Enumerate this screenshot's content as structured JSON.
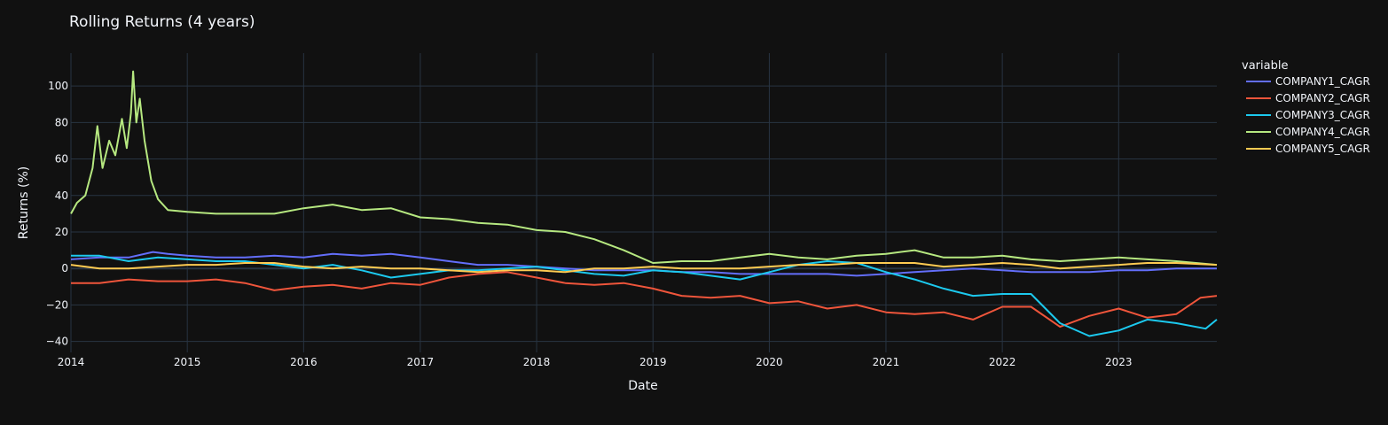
{
  "chart_data": {
    "type": "line",
    "title": "Rolling Returns (4 years)",
    "xlabel": "Date",
    "ylabel": "Returns (%)",
    "legend_title": "variable",
    "legend_position": "top-right, outside plot",
    "grid": true,
    "background": "#111111",
    "x_ticks": [
      "2014",
      "2015",
      "2016",
      "2017",
      "2018",
      "2019",
      "2020",
      "2021",
      "2022",
      "2023"
    ],
    "y_ticks": [
      -40,
      -20,
      0,
      20,
      40,
      60,
      80,
      100
    ],
    "xlim": [
      "2014-01-01",
      "2023-11-05"
    ],
    "ylim": [
      -46,
      118
    ],
    "series": [
      {
        "name": "COMPANY1_CAGR",
        "color": "#636efa",
        "points": [
          [
            "2014-01-01",
            5
          ],
          [
            "2014-04-01",
            6
          ],
          [
            "2014-07-01",
            6
          ],
          [
            "2014-09-15",
            9
          ],
          [
            "2014-11-01",
            8
          ],
          [
            "2015-01-01",
            7
          ],
          [
            "2015-04-01",
            6
          ],
          [
            "2015-07-01",
            6
          ],
          [
            "2015-10-01",
            7
          ],
          [
            "2016-01-01",
            6
          ],
          [
            "2016-04-01",
            8
          ],
          [
            "2016-07-01",
            7
          ],
          [
            "2016-10-01",
            8
          ],
          [
            "2017-01-01",
            6
          ],
          [
            "2017-04-01",
            4
          ],
          [
            "2017-07-01",
            2
          ],
          [
            "2017-10-01",
            2
          ],
          [
            "2018-01-01",
            1
          ],
          [
            "2018-04-01",
            0
          ],
          [
            "2018-07-01",
            -1
          ],
          [
            "2018-10-01",
            -1
          ],
          [
            "2019-01-01",
            -1
          ],
          [
            "2019-04-01",
            -2
          ],
          [
            "2019-07-01",
            -2
          ],
          [
            "2019-10-01",
            -3
          ],
          [
            "2020-01-01",
            -3
          ],
          [
            "2020-04-01",
            -3
          ],
          [
            "2020-07-01",
            -3
          ],
          [
            "2020-10-01",
            -4
          ],
          [
            "2021-01-01",
            -3
          ],
          [
            "2021-04-01",
            -2
          ],
          [
            "2021-07-01",
            -1
          ],
          [
            "2021-10-01",
            0
          ],
          [
            "2022-01-01",
            -1
          ],
          [
            "2022-04-01",
            -2
          ],
          [
            "2022-07-01",
            -2
          ],
          [
            "2022-10-01",
            -2
          ],
          [
            "2023-01-01",
            -1
          ],
          [
            "2023-04-01",
            -1
          ],
          [
            "2023-07-01",
            0
          ],
          [
            "2023-11-05",
            0
          ]
        ]
      },
      {
        "name": "COMPANY2_CAGR",
        "color": "#ef553b",
        "points": [
          [
            "2014-01-01",
            -8
          ],
          [
            "2014-04-01",
            -8
          ],
          [
            "2014-07-01",
            -6
          ],
          [
            "2014-10-01",
            -7
          ],
          [
            "2015-01-01",
            -7
          ],
          [
            "2015-04-01",
            -6
          ],
          [
            "2015-07-01",
            -8
          ],
          [
            "2015-10-01",
            -12
          ],
          [
            "2016-01-01",
            -10
          ],
          [
            "2016-04-01",
            -9
          ],
          [
            "2016-07-01",
            -11
          ],
          [
            "2016-10-01",
            -8
          ],
          [
            "2017-01-01",
            -9
          ],
          [
            "2017-04-01",
            -5
          ],
          [
            "2017-07-01",
            -3
          ],
          [
            "2017-10-01",
            -2
          ],
          [
            "2018-01-01",
            -5
          ],
          [
            "2018-04-01",
            -8
          ],
          [
            "2018-07-01",
            -9
          ],
          [
            "2018-10-01",
            -8
          ],
          [
            "2019-01-01",
            -11
          ],
          [
            "2019-04-01",
            -15
          ],
          [
            "2019-07-01",
            -16
          ],
          [
            "2019-10-01",
            -15
          ],
          [
            "2020-01-01",
            -19
          ],
          [
            "2020-04-01",
            -18
          ],
          [
            "2020-07-01",
            -22
          ],
          [
            "2020-10-01",
            -20
          ],
          [
            "2021-01-01",
            -24
          ],
          [
            "2021-04-01",
            -25
          ],
          [
            "2021-07-01",
            -24
          ],
          [
            "2021-10-01",
            -28
          ],
          [
            "2022-01-01",
            -21
          ],
          [
            "2022-04-01",
            -21
          ],
          [
            "2022-07-01",
            -32
          ],
          [
            "2022-10-01",
            -26
          ],
          [
            "2023-01-01",
            -22
          ],
          [
            "2023-04-01",
            -27
          ],
          [
            "2023-07-01",
            -25
          ],
          [
            "2023-09-15",
            -16
          ],
          [
            "2023-11-05",
            -15
          ]
        ]
      },
      {
        "name": "COMPANY3_CAGR",
        "color": "#00cc96",
        "display_color": "#1cc9ee",
        "points": [
          [
            "2014-01-01",
            7
          ],
          [
            "2014-04-01",
            7
          ],
          [
            "2014-07-01",
            4
          ],
          [
            "2014-10-01",
            6
          ],
          [
            "2015-01-01",
            5
          ],
          [
            "2015-04-01",
            4
          ],
          [
            "2015-07-01",
            4
          ],
          [
            "2015-10-01",
            2
          ],
          [
            "2016-01-01",
            0
          ],
          [
            "2016-04-01",
            2
          ],
          [
            "2016-07-01",
            -1
          ],
          [
            "2016-10-01",
            -5
          ],
          [
            "2017-01-01",
            -3
          ],
          [
            "2017-04-01",
            -1
          ],
          [
            "2017-07-01",
            -1
          ],
          [
            "2017-10-01",
            0
          ],
          [
            "2018-01-01",
            1
          ],
          [
            "2018-04-01",
            -1
          ],
          [
            "2018-07-01",
            -3
          ],
          [
            "2018-10-01",
            -4
          ],
          [
            "2019-01-01",
            -1
          ],
          [
            "2019-04-01",
            -2
          ],
          [
            "2019-07-01",
            -4
          ],
          [
            "2019-10-01",
            -6
          ],
          [
            "2020-01-01",
            -2
          ],
          [
            "2020-04-01",
            2
          ],
          [
            "2020-07-01",
            4
          ],
          [
            "2020-10-01",
            3
          ],
          [
            "2021-01-01",
            -2
          ],
          [
            "2021-04-01",
            -6
          ],
          [
            "2021-07-01",
            -11
          ],
          [
            "2021-10-01",
            -15
          ],
          [
            "2022-01-01",
            -14
          ],
          [
            "2022-04-01",
            -14
          ],
          [
            "2022-07-01",
            -30
          ],
          [
            "2022-10-01",
            -37
          ],
          [
            "2023-01-01",
            -34
          ],
          [
            "2023-04-01",
            -28
          ],
          [
            "2023-07-01",
            -30
          ],
          [
            "2023-10-01",
            -33
          ],
          [
            "2023-11-05",
            -28
          ]
        ]
      },
      {
        "name": "COMPANY4_CAGR",
        "color": "#b6e880",
        "points": [
          [
            "2014-01-01",
            30
          ],
          [
            "2014-01-20",
            36
          ],
          [
            "2014-02-15",
            40
          ],
          [
            "2014-03-10",
            55
          ],
          [
            "2014-03-25",
            78
          ],
          [
            "2014-04-10",
            55
          ],
          [
            "2014-05-01",
            70
          ],
          [
            "2014-05-20",
            62
          ],
          [
            "2014-06-10",
            82
          ],
          [
            "2014-06-25",
            66
          ],
          [
            "2014-07-08",
            85
          ],
          [
            "2014-07-15",
            108
          ],
          [
            "2014-07-25",
            80
          ],
          [
            "2014-08-05",
            93
          ],
          [
            "2014-08-20",
            70
          ],
          [
            "2014-09-10",
            48
          ],
          [
            "2014-10-01",
            38
          ],
          [
            "2014-11-01",
            32
          ],
          [
            "2015-01-01",
            31
          ],
          [
            "2015-04-01",
            30
          ],
          [
            "2015-07-01",
            30
          ],
          [
            "2015-10-01",
            30
          ],
          [
            "2016-01-01",
            33
          ],
          [
            "2016-04-01",
            35
          ],
          [
            "2016-07-01",
            32
          ],
          [
            "2016-10-01",
            33
          ],
          [
            "2017-01-01",
            28
          ],
          [
            "2017-04-01",
            27
          ],
          [
            "2017-07-01",
            25
          ],
          [
            "2017-10-01",
            24
          ],
          [
            "2018-01-01",
            21
          ],
          [
            "2018-04-01",
            20
          ],
          [
            "2018-07-01",
            16
          ],
          [
            "2018-10-01",
            10
          ],
          [
            "2019-01-01",
            3
          ],
          [
            "2019-04-01",
            4
          ],
          [
            "2019-07-01",
            4
          ],
          [
            "2019-10-01",
            6
          ],
          [
            "2020-01-01",
            8
          ],
          [
            "2020-04-01",
            6
          ],
          [
            "2020-07-01",
            5
          ],
          [
            "2020-10-01",
            7
          ],
          [
            "2021-01-01",
            8
          ],
          [
            "2021-04-01",
            10
          ],
          [
            "2021-07-01",
            6
          ],
          [
            "2021-10-01",
            6
          ],
          [
            "2022-01-01",
            7
          ],
          [
            "2022-04-01",
            5
          ],
          [
            "2022-07-01",
            4
          ],
          [
            "2022-10-01",
            5
          ],
          [
            "2023-01-01",
            6
          ],
          [
            "2023-04-01",
            5
          ],
          [
            "2023-07-01",
            4
          ],
          [
            "2023-11-05",
            2
          ]
        ]
      },
      {
        "name": "COMPANY5_CAGR",
        "color": "#fecb52",
        "points": [
          [
            "2014-01-01",
            2
          ],
          [
            "2014-04-01",
            0
          ],
          [
            "2014-07-01",
            0
          ],
          [
            "2014-10-01",
            1
          ],
          [
            "2015-01-01",
            2
          ],
          [
            "2015-04-01",
            2
          ],
          [
            "2015-07-01",
            3
          ],
          [
            "2015-10-01",
            3
          ],
          [
            "2016-01-01",
            1
          ],
          [
            "2016-04-01",
            0
          ],
          [
            "2016-07-01",
            1
          ],
          [
            "2016-10-01",
            0
          ],
          [
            "2017-01-01",
            0
          ],
          [
            "2017-04-01",
            -1
          ],
          [
            "2017-07-01",
            -2
          ],
          [
            "2017-10-01",
            -1
          ],
          [
            "2018-01-01",
            -1
          ],
          [
            "2018-04-01",
            -2
          ],
          [
            "2018-07-01",
            0
          ],
          [
            "2018-10-01",
            0
          ],
          [
            "2019-01-01",
            1
          ],
          [
            "2019-04-01",
            0
          ],
          [
            "2019-07-01",
            0
          ],
          [
            "2019-10-01",
            0
          ],
          [
            "2020-01-01",
            1
          ],
          [
            "2020-04-01",
            2
          ],
          [
            "2020-07-01",
            2
          ],
          [
            "2020-10-01",
            3
          ],
          [
            "2021-01-01",
            3
          ],
          [
            "2021-04-01",
            3
          ],
          [
            "2021-07-01",
            1
          ],
          [
            "2021-10-01",
            2
          ],
          [
            "2022-01-01",
            3
          ],
          [
            "2022-04-01",
            2
          ],
          [
            "2022-07-01",
            0
          ],
          [
            "2022-10-01",
            1
          ],
          [
            "2023-01-01",
            2
          ],
          [
            "2023-04-01",
            3
          ],
          [
            "2023-07-01",
            3
          ],
          [
            "2023-11-05",
            2
          ]
        ]
      }
    ]
  }
}
